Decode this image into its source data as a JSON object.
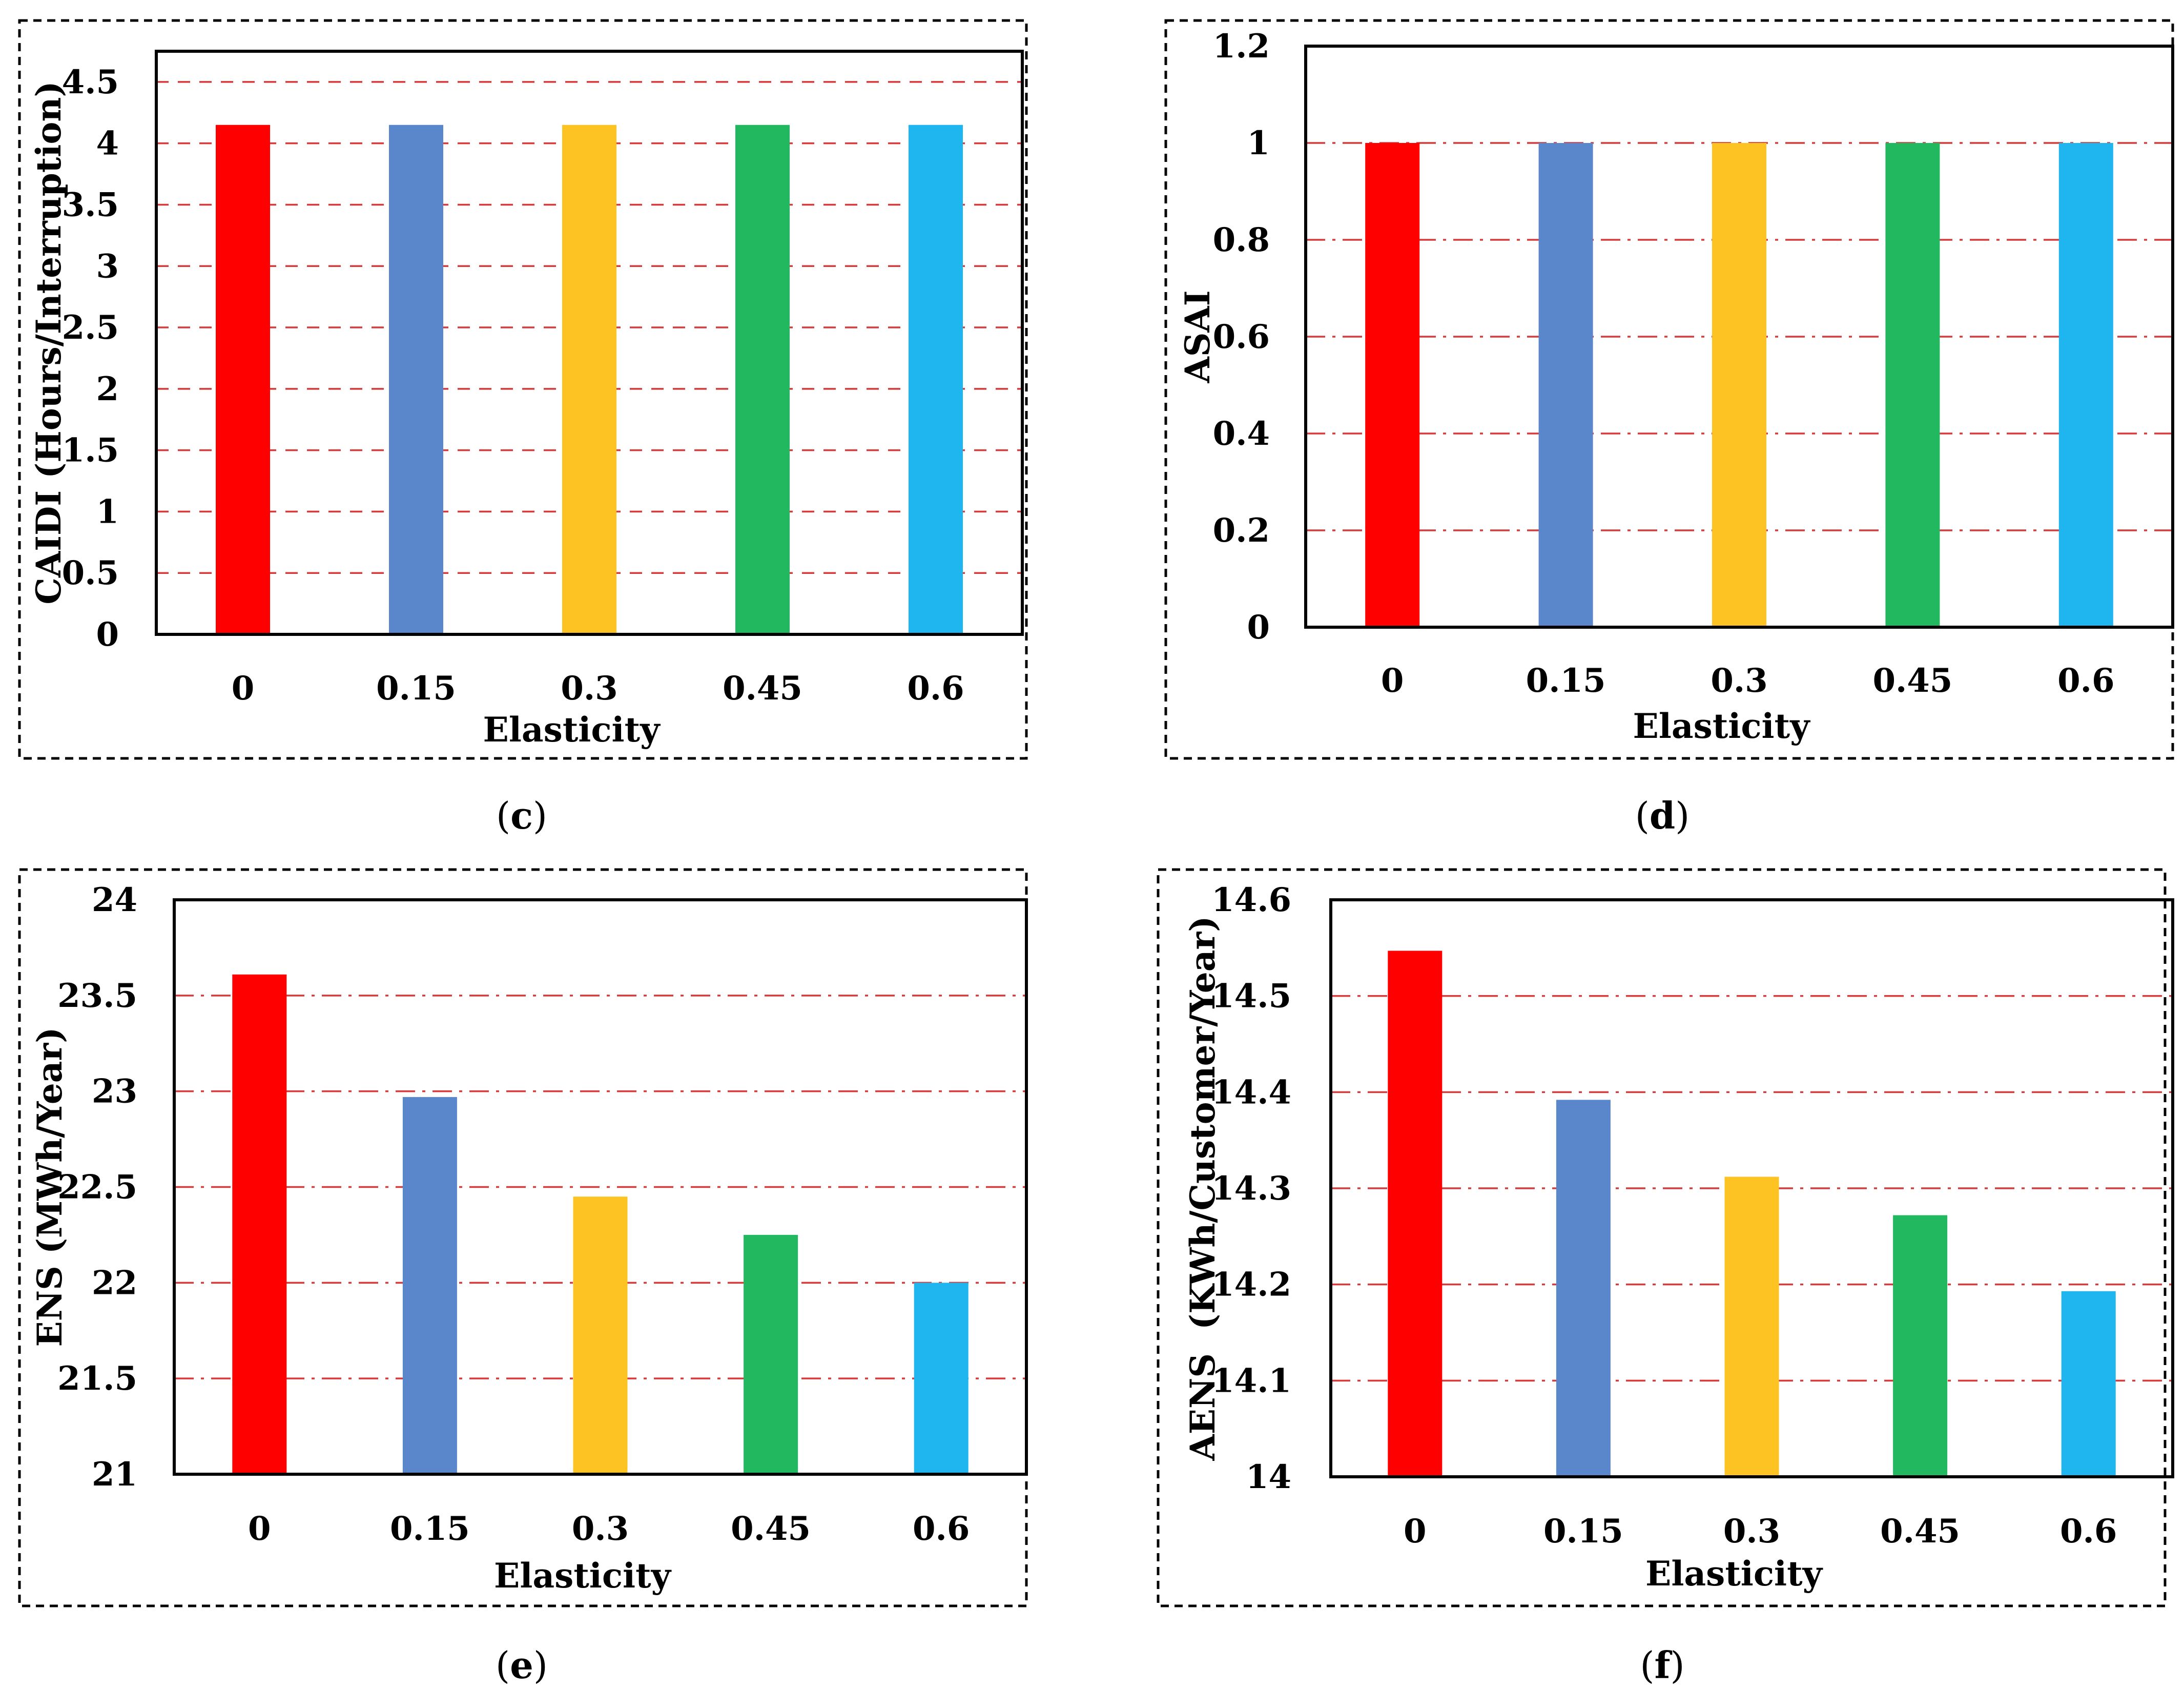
{
  "colors": {
    "grid": "#d63a3a",
    "series": [
      "#ff0000",
      "#5a86cc",
      "#fdc322",
      "#22b860",
      "#1fb5ef"
    ]
  },
  "chart_data": [
    {
      "panel": "c",
      "caption_letter": "c",
      "type": "bar",
      "categories": [
        "0",
        "0.15",
        "0.3",
        "0.45",
        "0.6"
      ],
      "values": [
        4.15,
        4.15,
        4.15,
        4.15,
        4.15
      ],
      "xlabel": "Elasticity",
      "ylabel": "CAIDI (Hours/Interruption)",
      "ylim": [
        0,
        4.75
      ],
      "yticks": [
        0,
        0.5,
        1,
        1.5,
        2,
        2.5,
        3,
        3.5,
        4,
        4.5
      ],
      "ytick_labels": [
        "0",
        "0.5",
        "1",
        "1.5",
        "2",
        "2.5",
        "3",
        "3.5",
        "4",
        "4.5"
      ],
      "grid": "dashed",
      "legend": "none"
    },
    {
      "panel": "d",
      "caption_letter": "d",
      "type": "bar",
      "categories": [
        "0",
        "0.15",
        "0.3",
        "0.45",
        "0.6"
      ],
      "values": [
        1.0,
        1.0,
        1.0,
        1.0,
        1.0
      ],
      "xlabel": "Elasticity",
      "ylabel": "ASAI",
      "ylim": [
        0,
        1.2
      ],
      "yticks": [
        0,
        0.2,
        0.4,
        0.6,
        0.8,
        1,
        1.2
      ],
      "ytick_labels": [
        "0",
        "0.2",
        "0.4",
        "0.6",
        "0.8",
        "1",
        "1.2"
      ],
      "grid": "dashdot",
      "legend": "none"
    },
    {
      "panel": "e",
      "caption_letter": "e",
      "type": "bar",
      "categories": [
        "0",
        "0.15",
        "0.3",
        "0.45",
        "0.6"
      ],
      "values": [
        23.61,
        22.97,
        22.45,
        22.25,
        22.0
      ],
      "xlabel": "Elasticity",
      "ylabel": "ENS (MWh/Year)",
      "ylim": [
        21,
        24
      ],
      "yticks": [
        21,
        21.5,
        22,
        22.5,
        23,
        23.5,
        24
      ],
      "ytick_labels": [
        "21",
        "21.5",
        "22",
        "22.5",
        "23",
        "23.5",
        "24"
      ],
      "grid": "dashdot",
      "legend": "none"
    },
    {
      "panel": "f",
      "caption_letter": "f",
      "type": "bar",
      "categories": [
        "0",
        "0.15",
        "0.3",
        "0.45",
        "0.6"
      ],
      "values": [
        14.547,
        14.392,
        14.312,
        14.272,
        14.193
      ],
      "xlabel": "Elasticity",
      "ylabel": "AENS  (KWh/Customer/Year)",
      "ylim": [
        14,
        14.6
      ],
      "yticks": [
        14,
        14.1,
        14.2,
        14.3,
        14.4,
        14.5,
        14.6
      ],
      "ytick_labels": [
        "14",
        "14.1",
        "14.2",
        "14.3",
        "14.4",
        "14.5",
        "14.6"
      ],
      "grid": "dashdot",
      "legend": "none"
    }
  ]
}
